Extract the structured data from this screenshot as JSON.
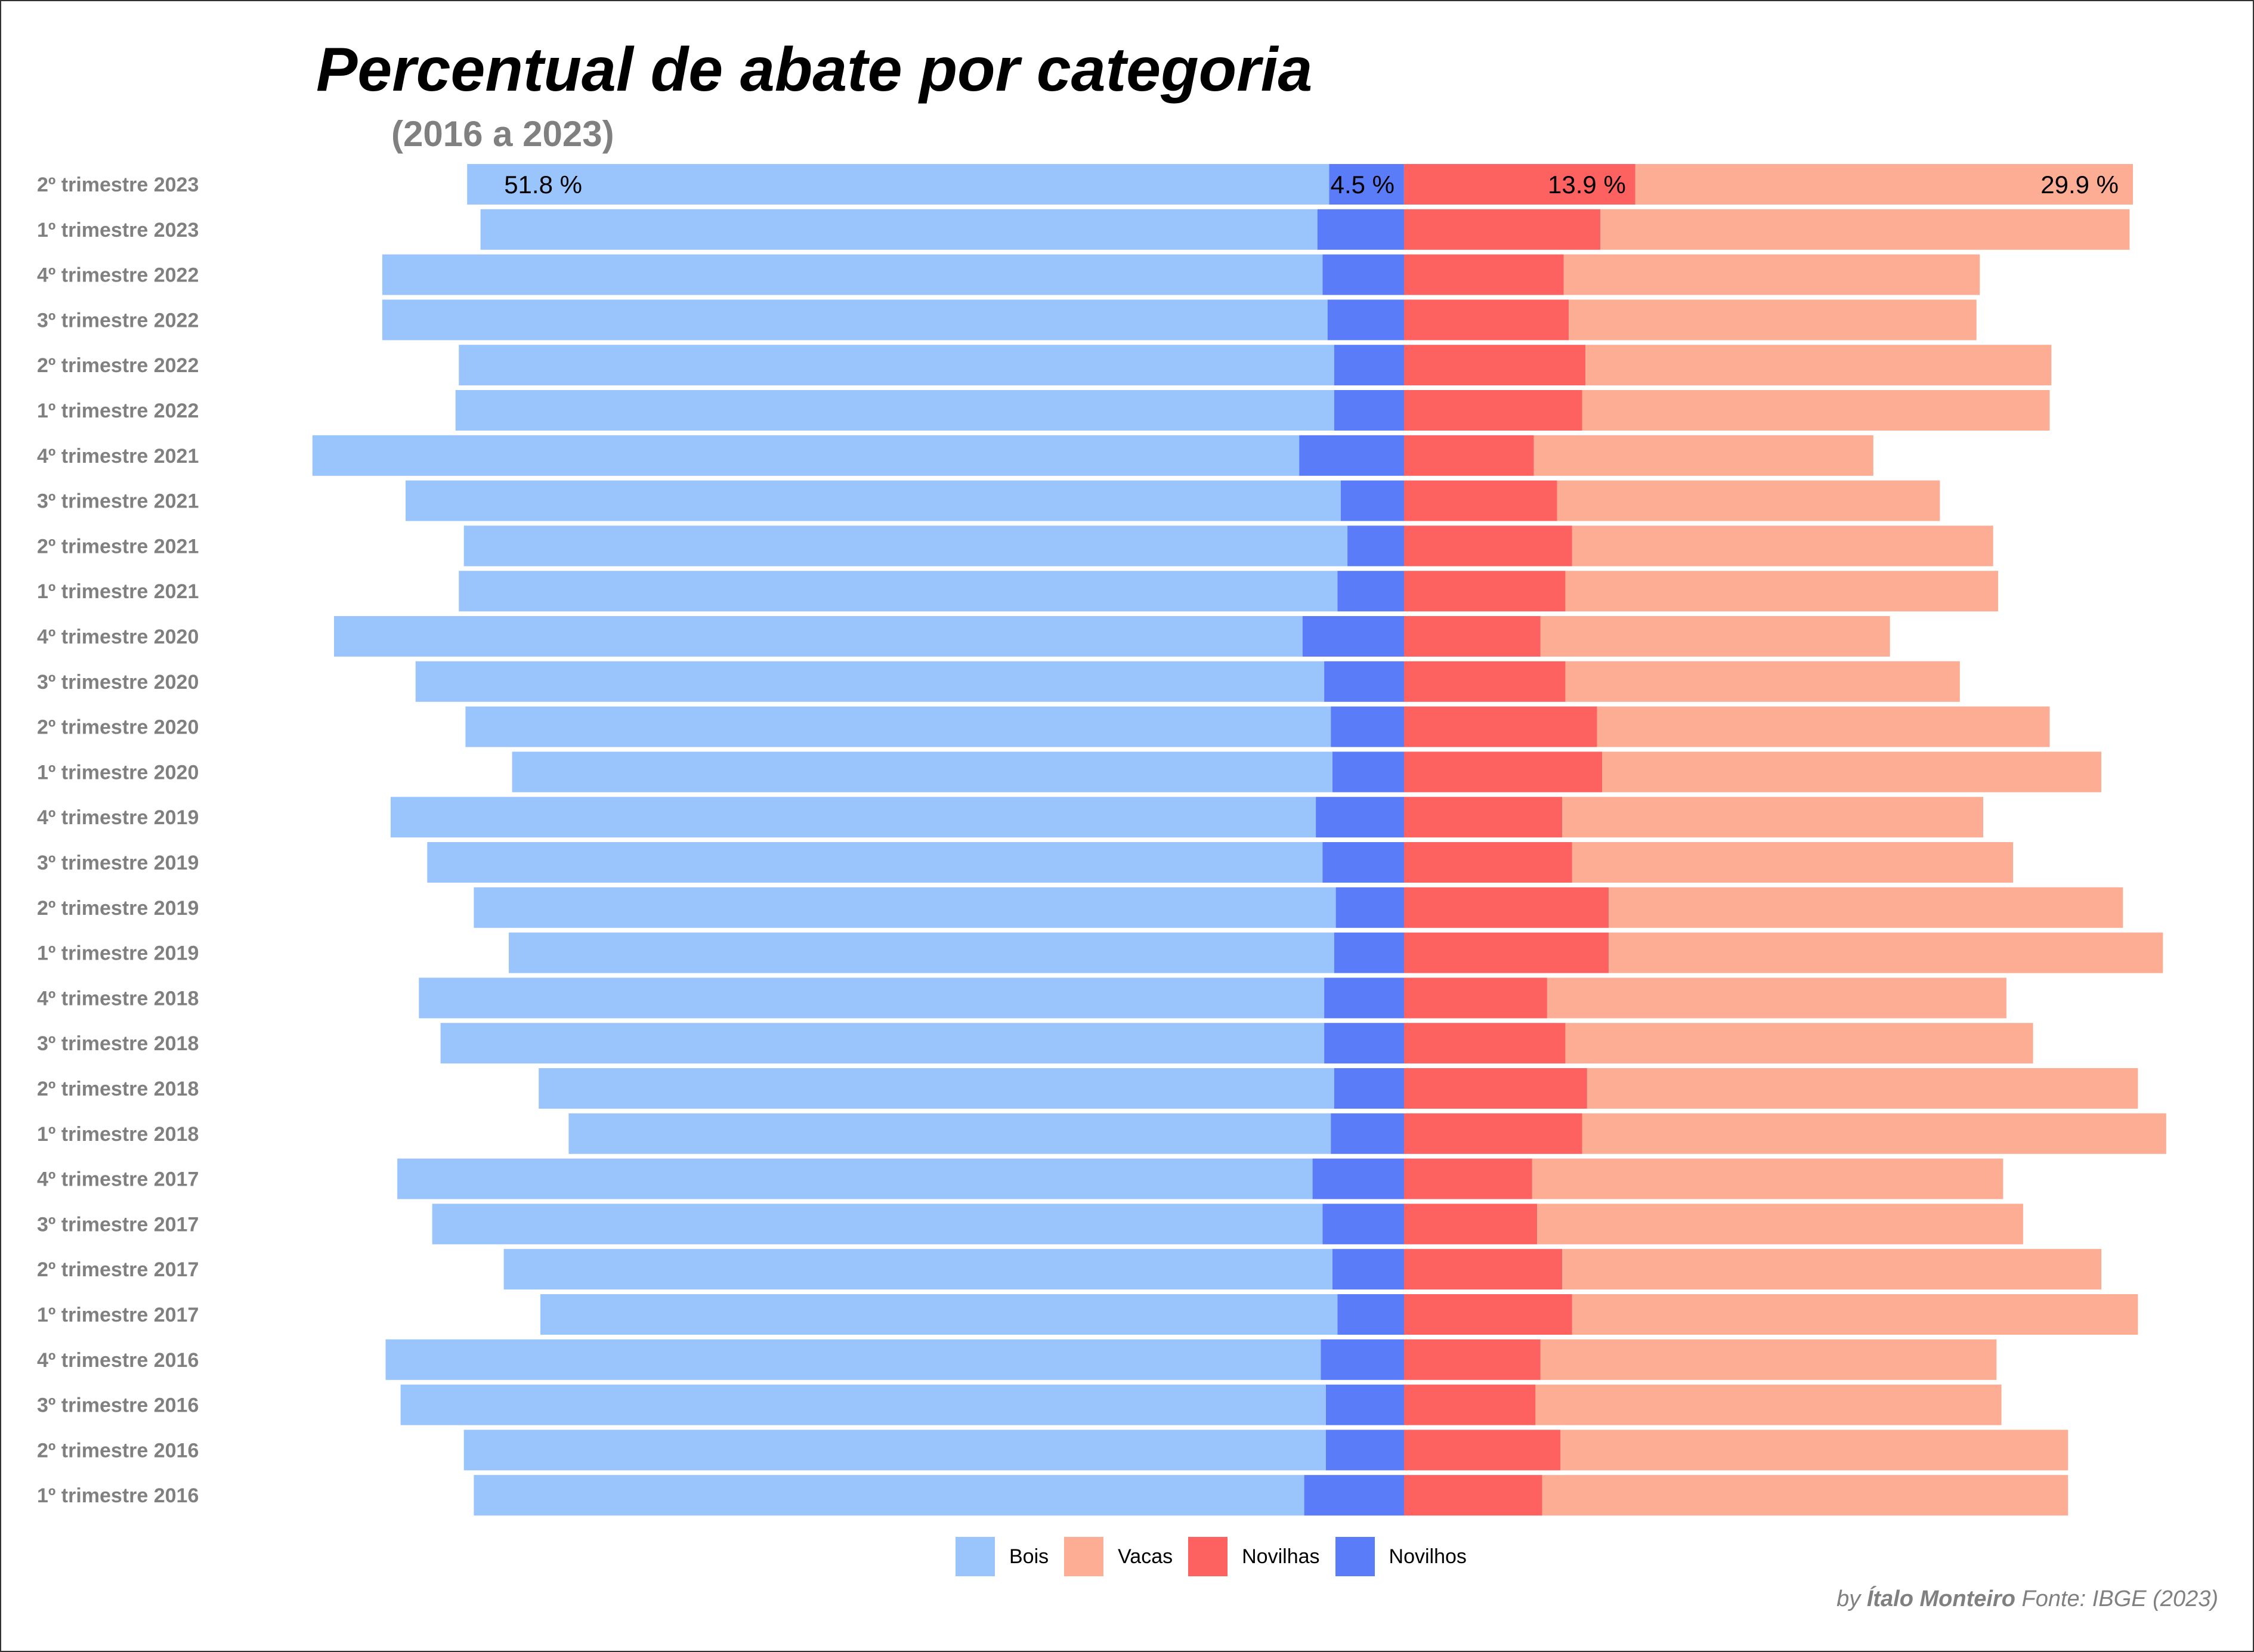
{
  "chart_data": {
    "type": "bar",
    "orientation": "horizontal-diverging",
    "title": "Percentual de abate por categoria",
    "subtitle": "(2016 a 2023)",
    "categories": [
      "2º trimestre 2023",
      "1º trimestre 2023",
      "4º trimestre 2022",
      "3º trimestre 2022",
      "2º trimestre 2022",
      "1º trimestre 2022",
      "4º trimestre 2021",
      "3º trimestre 2021",
      "2º trimestre 2021",
      "1º trimestre 2021",
      "4º trimestre 2020",
      "3º trimestre 2020",
      "2º trimestre 2020",
      "1º trimestre 2020",
      "4º trimestre 2019",
      "3º trimestre 2019",
      "2º trimestre 2019",
      "1º trimestre 2019",
      "4º trimestre 2018",
      "3º trimestre 2018",
      "2º trimestre 2018",
      "1º trimestre 2018",
      "4º trimestre 2017",
      "3º trimestre 2017",
      "2º trimestre 2017",
      "1º trimestre 2017",
      "4º trimestre 2016",
      "3º trimestre 2016",
      "2º trimestre 2016",
      "1º trimestre 2016"
    ],
    "series": [
      {
        "name": "Bois",
        "side": "left",
        "color": "#99c4fc",
        "values": [
          51.8,
          50.3,
          56.5,
          56.8,
          52.6,
          52.8,
          59.3,
          56.2,
          53.1,
          52.8,
          58.2,
          54.6,
          52.0,
          49.3,
          55.6,
          53.8,
          51.8,
          49.6,
          54.4,
          53.1,
          47.8,
          45.8,
          55.0,
          53.5,
          49.8,
          47.9,
          56.2,
          55.6,
          51.8,
          49.9
        ]
      },
      {
        "name": "Novilhos",
        "side": "left",
        "color": "#5b7cf9",
        "values": [
          4.5,
          5.2,
          4.9,
          4.6,
          4.2,
          4.2,
          6.3,
          3.8,
          3.4,
          4.0,
          6.1,
          4.8,
          4.4,
          4.3,
          5.3,
          4.9,
          4.1,
          4.2,
          4.8,
          4.8,
          4.2,
          4.4,
          5.5,
          4.9,
          4.3,
          4.0,
          5.0,
          4.7,
          4.7,
          6.0
        ]
      },
      {
        "name": "Novilhas",
        "side": "right",
        "color": "#fd6160",
        "values": [
          13.9,
          11.8,
          9.6,
          9.9,
          10.9,
          10.7,
          7.8,
          9.2,
          10.1,
          9.7,
          8.2,
          9.7,
          11.6,
          11.9,
          9.5,
          10.1,
          12.3,
          12.3,
          8.6,
          9.7,
          11.0,
          10.7,
          7.7,
          8.0,
          9.5,
          10.1,
          8.2,
          7.9,
          9.4,
          8.3
        ]
      },
      {
        "name": "Vacas",
        "side": "right",
        "color": "#fdad94",
        "values": [
          29.9,
          31.8,
          25.0,
          24.5,
          28.0,
          28.1,
          20.4,
          23.0,
          25.3,
          26.0,
          21.0,
          23.7,
          27.2,
          30.0,
          25.3,
          26.5,
          30.9,
          33.3,
          27.6,
          28.1,
          33.1,
          35.1,
          28.3,
          29.2,
          32.4,
          34.0,
          27.4,
          28.0,
          30.5,
          31.6
        ]
      }
    ],
    "data_labels": [
      "51.8 %",
      "4.5 %",
      "13.9 %",
      "29.9 %"
    ],
    "legend": {
      "placement": "bottom",
      "order": [
        "Bois",
        "Vacas",
        "Novilhas",
        "Novilhos"
      ]
    },
    "grid": false,
    "caption": {
      "by": "by",
      "author": "Ítalo Monteiro",
      "source": "Fonte: IBGE (2023)"
    }
  }
}
